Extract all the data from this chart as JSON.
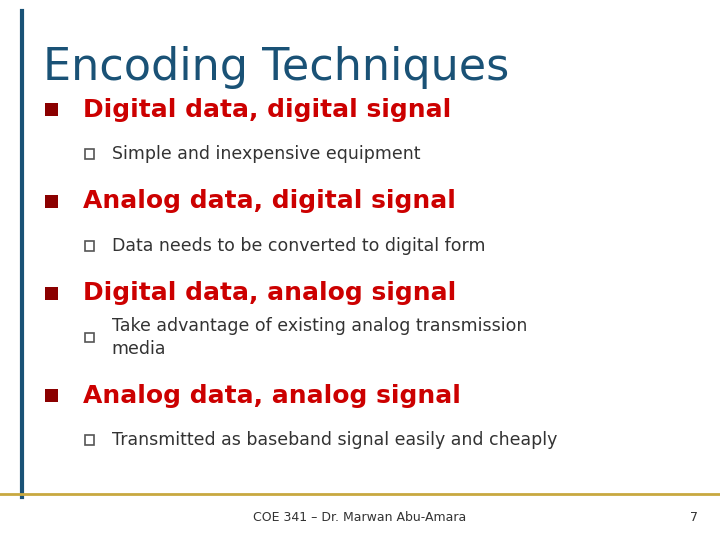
{
  "title": "Encoding Techniques",
  "title_color": "#1a5276",
  "title_fontsize": 32,
  "background_color": "#ffffff",
  "border_left_color": "#1a5276",
  "border_bottom_color": "#c8a840",
  "bullet_marker_color": "#8B0000",
  "sub_bullet_color": "#333333",
  "footer_text": "COE 341 – Dr. Marwan Abu-Amara",
  "footer_number": "7",
  "items": [
    {
      "text": "Digital data, digital signal",
      "color": "#cc0000",
      "sub": [
        "Simple and inexpensive equipment"
      ]
    },
    {
      "text": "Analog data, digital signal",
      "color": "#cc0000",
      "sub": [
        "Data needs to be converted to digital form"
      ]
    },
    {
      "text": "Digital data, analog signal",
      "color": "#cc0000",
      "sub": [
        "Take advantage of existing analog transmission\nmedia"
      ]
    },
    {
      "text": "Analog data, analog signal",
      "color": "#cc0000",
      "sub": [
        "Transmitted as baseband signal easily and cheaply"
      ]
    }
  ]
}
